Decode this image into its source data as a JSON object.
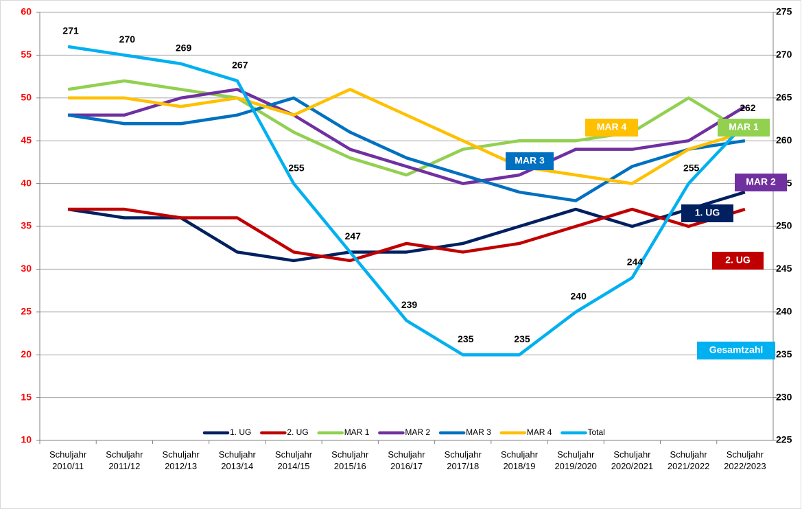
{
  "chart_data": {
    "type": "line",
    "categories": [
      "Schuljahr 2010/11",
      "Schuljahr 2011/12",
      "Schuljahr 2012/13",
      "Schuljahr 2013/14",
      "Schuljahr 2014/15",
      "Schuljahr 2015/16",
      "Schuljahr 2016/17",
      "Schuljahr 2017/18",
      "Schuljahr 2018/19",
      "Schuljahr 2019/2020",
      "Schuljahr 2020/2021",
      "Schuljahr 2021/2022",
      "Schuljahr 2022/2023"
    ],
    "series": [
      {
        "name": "1. UG",
        "color": "#002060",
        "values": [
          37,
          36,
          36,
          32,
          31,
          32,
          32,
          33,
          35,
          37,
          35,
          37,
          39
        ]
      },
      {
        "name": "2. UG",
        "color": "#c00000",
        "values": [
          37,
          37,
          36,
          36,
          32,
          31,
          33,
          32,
          33,
          35,
          37,
          35,
          37
        ]
      },
      {
        "name": "MAR 1",
        "color": "#92d050",
        "values": [
          51,
          52,
          51,
          50,
          46,
          43,
          41,
          44,
          45,
          45,
          46,
          50,
          46
        ]
      },
      {
        "name": "MAR 2",
        "color": "#7030a0",
        "values": [
          48,
          48,
          50,
          51,
          48,
          44,
          42,
          40,
          41,
          44,
          44,
          45,
          49
        ]
      },
      {
        "name": "MAR 3",
        "color": "#0070c0",
        "values": [
          48,
          47,
          47,
          48,
          50,
          46,
          43,
          41,
          39,
          38,
          42,
          44,
          45
        ]
      },
      {
        "name": "MAR 4",
        "color": "#ffc000",
        "values": [
          50,
          50,
          49,
          50,
          48,
          51,
          48,
          45,
          42,
          41,
          40,
          44,
          46
        ]
      },
      {
        "name": "Total",
        "color": "#00b0f0",
        "axis": "y2",
        "data_labels": true,
        "values": [
          271,
          270,
          269,
          267,
          255,
          247,
          239,
          235,
          235,
          240,
          244,
          255,
          262
        ]
      }
    ],
    "annotations": [
      {
        "text": "MAR 3",
        "color": "#0070c0"
      },
      {
        "text": "MAR 4",
        "color": "#ffc000"
      },
      {
        "text": "MAR 1",
        "color": "#92d050"
      },
      {
        "text": "MAR 2",
        "color": "#7030a0"
      },
      {
        "text": "1. UG",
        "color": "#002060"
      },
      {
        "text": "2. UG",
        "color": "#c00000"
      },
      {
        "text": "Gesamtzahl",
        "color": "#00b0f0"
      }
    ],
    "ylim": [
      10,
      60
    ],
    "yticks": [
      10,
      15,
      20,
      25,
      30,
      35,
      40,
      45,
      50,
      55,
      60
    ],
    "ytick_color": "#ff0000",
    "y2lim": [
      225,
      275
    ],
    "y2ticks": [
      225,
      230,
      235,
      240,
      245,
      250,
      255,
      260,
      265,
      270,
      275
    ],
    "grid": true,
    "legend": "bottom"
  }
}
